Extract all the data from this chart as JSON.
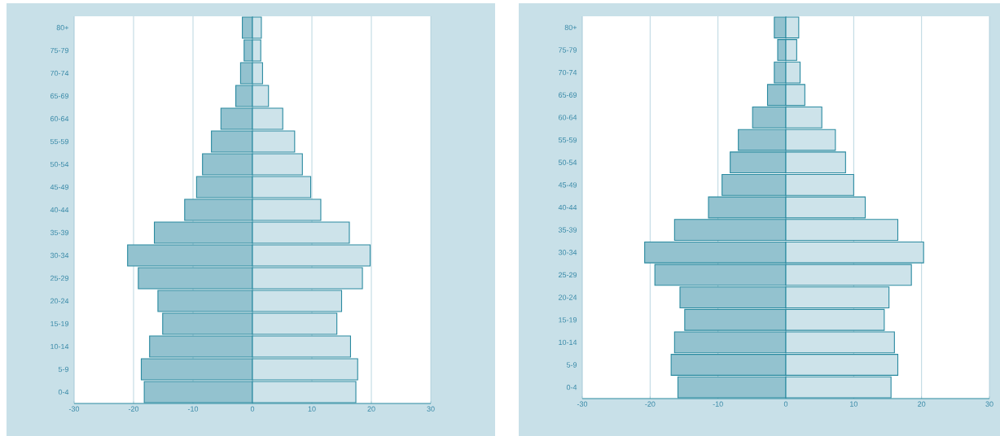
{
  "chart_data": [
    {
      "type": "bar",
      "orientation": "horizontal",
      "stacked": true,
      "categories": [
        "80+",
        "75-79",
        "70-74",
        "65-69",
        "60-64",
        "55-59",
        "50-54",
        "45-49",
        "40-44",
        "35-39",
        "30-34",
        "25-29",
        "20-24",
        "15-19",
        "10-14",
        "5-9",
        "0-4"
      ],
      "series": [
        {
          "color": "#93c2cf",
          "values": [
            -1.7,
            -1.4,
            -2.0,
            -2.8,
            -5.3,
            -6.9,
            -8.4,
            -9.4,
            -11.4,
            -16.5,
            -21.0,
            -19.2,
            -15.9,
            -15.1,
            -17.3,
            -18.7,
            -18.2
          ]
        },
        {
          "color": "#cde3ea",
          "values": [
            1.5,
            1.4,
            1.7,
            2.7,
            5.1,
            7.1,
            8.4,
            9.8,
            11.5,
            16.3,
            19.8,
            18.5,
            15.0,
            14.2,
            16.5,
            17.7,
            17.4
          ]
        }
      ],
      "xlim": [
        -30,
        30
      ],
      "xticks": [
        -30,
        -20,
        -10,
        0,
        10,
        20,
        30
      ],
      "grid": "x"
    },
    {
      "type": "bar",
      "orientation": "horizontal",
      "stacked": true,
      "categories": [
        "80+",
        "75-79",
        "70-74",
        "65-69",
        "60-64",
        "55-59",
        "50-54",
        "45-49",
        "40-44",
        "35-39",
        "30-34",
        "25-29",
        "20-24",
        "15-19",
        "10-14",
        "5-9",
        "0-4"
      ],
      "series": [
        {
          "color": "#93c2cf",
          "values": [
            -1.7,
            -1.2,
            -1.7,
            -2.7,
            -4.9,
            -7.0,
            -8.2,
            -9.4,
            -11.4,
            -16.4,
            -20.8,
            -19.3,
            -15.6,
            -14.9,
            -16.4,
            -16.9,
            -15.9
          ]
        },
        {
          "color": "#cde3ea",
          "values": [
            1.9,
            1.6,
            2.1,
            2.8,
            5.3,
            7.3,
            8.8,
            10.0,
            11.7,
            16.5,
            20.3,
            18.5,
            15.2,
            14.5,
            16.0,
            16.5,
            15.5
          ]
        }
      ],
      "xlim": [
        -30,
        30
      ],
      "xticks": [
        -30,
        -20,
        -10,
        0,
        10,
        20,
        30
      ],
      "grid": "x"
    }
  ]
}
